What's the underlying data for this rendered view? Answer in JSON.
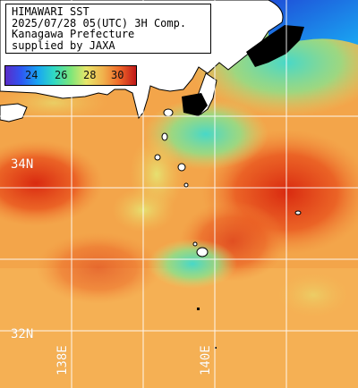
{
  "caption": {
    "lines": [
      "HIMAWARI SST",
      "2025/07/28 05(UTC) 3H Comp.",
      "Kanagawa Prefecture",
      "supplied by JAXA"
    ]
  },
  "legend": {
    "ticks": [
      "24",
      "26",
      "28",
      "30"
    ]
  },
  "grid": {
    "lat_labels": [
      "34N",
      "32N"
    ],
    "lon_labels": [
      "138E",
      "140E"
    ]
  },
  "colors": {
    "land": "#ffffff",
    "no_data": "#000000",
    "grid_line": "#ffffff",
    "sst_cool": "#38d6d0",
    "sst_mid": "#f0b04c",
    "sst_warm": "#e04818"
  }
}
